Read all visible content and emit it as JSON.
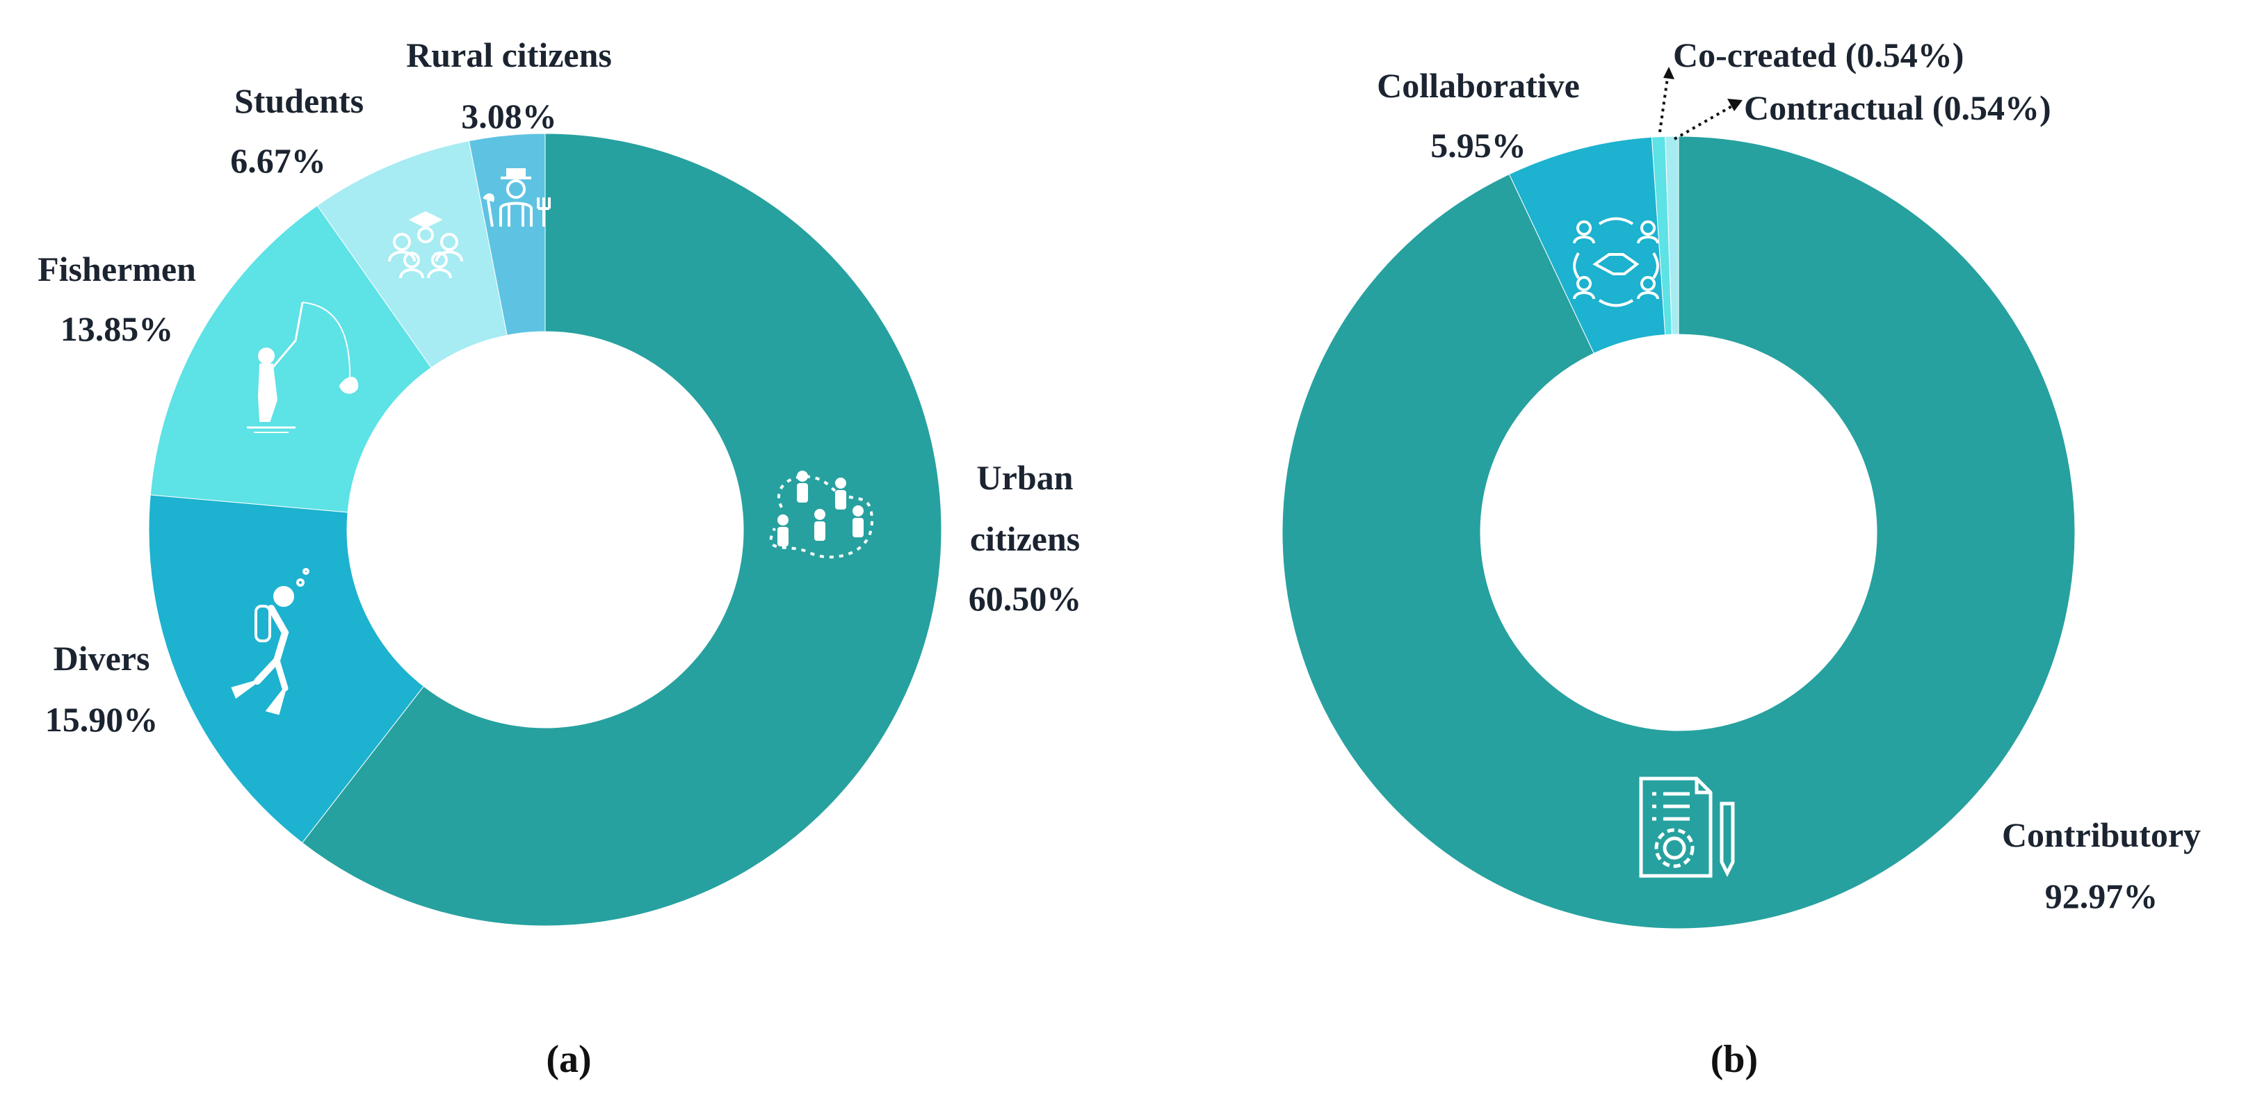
{
  "chart_data": [
    {
      "type": "pie",
      "donut": true,
      "panel_label": "(a)",
      "slices": [
        {
          "name": "Urban citizens",
          "value": 60.5,
          "value_label": "60.50%",
          "color": "#26a19f",
          "icon": "people-network-icon"
        },
        {
          "name": "Divers",
          "value": 15.9,
          "value_label": "15.90%",
          "color": "#1db2cf",
          "icon": "diver-icon"
        },
        {
          "name": "Fishermen",
          "value": 13.85,
          "value_label": "13.85%",
          "color": "#5de2e6",
          "icon": "fisherman-icon"
        },
        {
          "name": "Students",
          "value": 6.67,
          "value_label": "6.67%",
          "color": "#a6ecf2",
          "icon": "students-icon"
        },
        {
          "name": "Rural citizens",
          "value": 3.08,
          "value_label": "3.08%",
          "color": "#5ec3e2",
          "icon": "farmer-icon"
        }
      ]
    },
    {
      "type": "pie",
      "donut": true,
      "panel_label": "(b)",
      "slices": [
        {
          "name": "Contributory",
          "value": 92.97,
          "value_label": "92.97%",
          "color": "#26a19f",
          "icon": "document-gear-icon"
        },
        {
          "name": "Collaborative",
          "value": 5.95,
          "value_label": "5.95%",
          "color": "#1db2cf",
          "icon": "handshake-icon"
        },
        {
          "name": "Co-created",
          "value": 0.54,
          "value_label": "(0.54%)",
          "color": "#5de2e6"
        },
        {
          "name": "Contractual",
          "value": 0.54,
          "value_label": "(0.54%)",
          "color": "#a6ecf2"
        }
      ]
    }
  ]
}
